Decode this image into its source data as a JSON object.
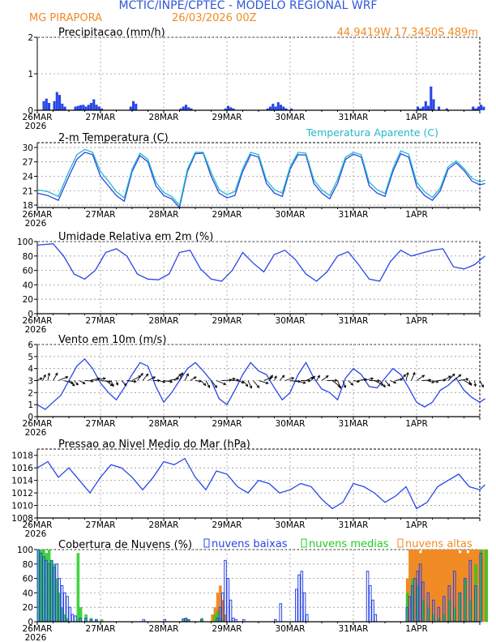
{
  "header": {
    "title": "MCTIC/INPE/CPTEC  -  MODELO REGIONAL WRF",
    "location": "MG PIRAPORA",
    "run": "26/03/2026 00Z",
    "coords": "44.9419W  17.3450S  489m"
  },
  "colors": {
    "title_blue": "#2f56d9",
    "orange": "#f08a24",
    "cyan": "#22b8c8",
    "series_blue": "#2846e8",
    "green": "#22cc22",
    "black": "#000000"
  },
  "x_axis": {
    "tick_labels": [
      "26MAR",
      "27MAR",
      "28MAR",
      "29MAR",
      "30MAR",
      "31MAR",
      "1APR"
    ],
    "year_label": "2026",
    "days": 7
  },
  "chart_data": [
    {
      "type": "bar",
      "title": "Precipitacao (mm/h)",
      "ylim": [
        0,
        2
      ],
      "yticks": [
        0,
        1,
        2
      ],
      "hours": [
        2,
        3,
        4,
        6,
        7,
        8,
        9,
        10,
        14,
        15,
        16,
        17,
        18,
        19,
        20,
        21,
        22,
        23,
        24,
        35,
        36,
        37,
        54,
        55,
        56,
        57,
        58,
        71,
        72,
        73,
        74,
        87,
        88,
        89,
        90,
        91,
        92,
        93,
        94,
        96,
        144,
        145,
        146,
        147,
        148,
        149,
        150,
        152,
        155,
        165,
        166,
        167,
        168,
        169
      ],
      "values": [
        0.25,
        0.32,
        0.2,
        0.25,
        0.5,
        0.42,
        0.18,
        0.1,
        0.1,
        0.12,
        0.14,
        0.15,
        0.1,
        0.15,
        0.2,
        0.3,
        0.15,
        0.1,
        0.05,
        0.1,
        0.25,
        0.18,
        0.05,
        0.1,
        0.15,
        0.08,
        0.05,
        0.05,
        0.12,
        0.08,
        0.05,
        0.05,
        0.1,
        0.18,
        0.1,
        0.22,
        0.15,
        0.1,
        0.05,
        0.05,
        0.1,
        0.05,
        0.1,
        0.25,
        0.12,
        0.65,
        0.3,
        0.1,
        0.05,
        0.1,
        0.05,
        0.1,
        0.15,
        0.1
      ]
    },
    {
      "type": "line",
      "title": "2-m Temperatura (C)",
      "legend": "Temperatura Aparente (C)",
      "ylim": [
        17.5,
        31
      ],
      "yticks": [
        18,
        21,
        24,
        27,
        30
      ],
      "series": [
        {
          "name": "Temperatura",
          "x": [
            0,
            4,
            8,
            12,
            15,
            18,
            21,
            24,
            27,
            30,
            33,
            36,
            39,
            42,
            45,
            48,
            51,
            54,
            57,
            60,
            63,
            66,
            69,
            72,
            75,
            78,
            81,
            84,
            87,
            90,
            93,
            96,
            99,
            102,
            105,
            108,
            111,
            114,
            117,
            120,
            123,
            126,
            129,
            132,
            135,
            138,
            141,
            144,
            147,
            150,
            153,
            156,
            159,
            162,
            165,
            168,
            170
          ],
          "values": [
            20.5,
            20,
            19,
            24,
            27.5,
            29,
            28.5,
            24,
            22,
            20,
            18.8,
            25,
            28.3,
            27,
            22,
            20,
            19.3,
            17.5,
            25,
            28.7,
            28.8,
            24,
            20.5,
            19.5,
            20,
            25,
            28.5,
            28,
            22.5,
            20.5,
            19.8,
            25.5,
            28.5,
            28.4,
            22.5,
            20.5,
            19.3,
            22.5,
            27.5,
            28.6,
            28,
            22,
            20.5,
            19.8,
            25,
            28.7,
            28,
            22,
            20,
            19,
            21,
            25.5,
            26.8,
            25.2,
            23,
            22.2,
            22.5
          ]
        },
        {
          "name": "Temperatura Aparente",
          "x": [
            0,
            4,
            8,
            12,
            15,
            18,
            21,
            24,
            27,
            30,
            33,
            36,
            39,
            42,
            45,
            48,
            51,
            54,
            57,
            60,
            63,
            66,
            69,
            72,
            75,
            78,
            81,
            84,
            87,
            90,
            93,
            96,
            99,
            102,
            105,
            108,
            111,
            114,
            117,
            120,
            123,
            126,
            129,
            132,
            135,
            138,
            141,
            144,
            147,
            150,
            153,
            156,
            159,
            162,
            165,
            168,
            170
          ],
          "values": [
            21.2,
            20.8,
            19.8,
            25,
            28.5,
            29.6,
            29,
            25,
            23,
            20.8,
            19.5,
            25.5,
            28.8,
            27.5,
            22.8,
            20.6,
            19.8,
            18,
            25.5,
            29,
            29,
            24.8,
            21.2,
            20.2,
            20.8,
            25.6,
            29,
            28.5,
            23.2,
            21.2,
            20.5,
            26,
            29,
            28.8,
            23.2,
            21.2,
            20,
            23.3,
            28,
            29,
            28.5,
            22.8,
            21.2,
            20.4,
            25.6,
            29.3,
            28.6,
            22.8,
            20.8,
            19.6,
            21.6,
            26,
            27.2,
            25.6,
            23.6,
            22.8,
            23.2
          ]
        }
      ]
    },
    {
      "type": "line",
      "title": "Umidade Relativa em 2m (%)",
      "ylim": [
        0,
        100
      ],
      "yticks": [
        0,
        20,
        40,
        60,
        80,
        100
      ],
      "x": [
        0,
        6,
        10,
        14,
        18,
        22,
        26,
        30,
        34,
        38,
        42,
        46,
        50,
        54,
        58,
        62,
        66,
        70,
        74,
        78,
        82,
        86,
        90,
        94,
        98,
        102,
        106,
        110,
        114,
        118,
        122,
        126,
        130,
        134,
        138,
        142,
        146,
        150,
        154,
        158,
        162,
        166,
        170
      ],
      "values": [
        95,
        97,
        80,
        55,
        48,
        60,
        85,
        90,
        80,
        55,
        48,
        47,
        55,
        85,
        88,
        62,
        48,
        45,
        60,
        85,
        70,
        58,
        82,
        88,
        75,
        55,
        45,
        58,
        80,
        86,
        68,
        48,
        45,
        72,
        88,
        80,
        84,
        88,
        90,
        65,
        62,
        68,
        80
      ]
    },
    {
      "type": "line",
      "title": "Vento em 10m (m/s)",
      "ylim": [
        0,
        6
      ],
      "yticks": [
        0,
        1,
        2,
        3,
        4,
        5,
        6
      ],
      "x": [
        0,
        3,
        6,
        9,
        12,
        15,
        18,
        21,
        24,
        27,
        30,
        33,
        36,
        39,
        42,
        45,
        48,
        51,
        54,
        57,
        60,
        63,
        66,
        69,
        72,
        75,
        78,
        81,
        84,
        87,
        90,
        93,
        96,
        99,
        102,
        105,
        108,
        111,
        114,
        117,
        120,
        123,
        126,
        129,
        132,
        135,
        138,
        141,
        144,
        147,
        150,
        153,
        156,
        159,
        162,
        165,
        168,
        170
      ],
      "values": [
        1,
        0.6,
        1.2,
        1.8,
        3,
        4.2,
        4.8,
        4,
        2.8,
        2,
        1.4,
        2.4,
        3.5,
        4.5,
        4.2,
        2.5,
        1.2,
        2,
        3,
        4,
        4.5,
        3.8,
        3,
        1.5,
        1,
        2.2,
        3.5,
        4.5,
        3.8,
        3.5,
        2.4,
        1.4,
        2,
        3.5,
        4.5,
        3.2,
        2.3,
        2,
        1.4,
        3.2,
        4,
        3.5,
        2.5,
        2.4,
        3.2,
        4,
        3.5,
        2.4,
        1.2,
        0.8,
        1.2,
        2.2,
        2.6,
        3.2,
        2.2,
        1.6,
        1.2,
        1.5
      ],
      "wind_arrows": "barb-like direction arrows near 3 m/s"
    },
    {
      "type": "line",
      "title": "Pressao ao Nivel Medio do Mar (hPa)",
      "ylim": [
        1008,
        1019
      ],
      "yticks": [
        1008,
        1010,
        1012,
        1014,
        1016,
        1018
      ],
      "x": [
        0,
        4,
        8,
        12,
        16,
        20,
        24,
        28,
        32,
        36,
        40,
        44,
        48,
        52,
        56,
        60,
        64,
        68,
        72,
        76,
        80,
        84,
        88,
        92,
        96,
        100,
        104,
        108,
        112,
        116,
        120,
        124,
        128,
        132,
        136,
        140,
        144,
        148,
        152,
        156,
        160,
        164,
        168,
        170
      ],
      "values": [
        1016,
        1017,
        1014.5,
        1016,
        1014,
        1012,
        1014.5,
        1016.5,
        1016,
        1014.5,
        1012.5,
        1014.5,
        1017,
        1016.5,
        1017.5,
        1014.5,
        1012.5,
        1015.5,
        1015,
        1013,
        1012,
        1014,
        1013.5,
        1012,
        1012.5,
        1013.5,
        1013,
        1011,
        1009.5,
        1010.5,
        1013.5,
        1013,
        1012,
        1010.5,
        1011.5,
        1013,
        1009.5,
        1010.5,
        1013,
        1014,
        1015,
        1013,
        1012.5,
        1013.3
      ]
    },
    {
      "type": "bar",
      "title": "Cobertura de Nuvens (%)",
      "ylim": [
        0,
        100
      ],
      "yticks": [
        0,
        20,
        40,
        60,
        80,
        100
      ],
      "series": [
        {
          "name": "nuvens baixas",
          "hours": [
            0,
            1,
            2,
            3,
            4,
            5,
            6,
            7,
            8,
            9,
            10,
            11,
            12,
            13,
            14,
            16,
            18,
            20,
            22,
            40,
            48,
            55,
            56,
            57,
            62,
            68,
            69,
            70,
            71,
            72,
            73,
            74,
            75,
            78,
            90,
            92,
            98,
            99,
            100,
            101,
            102,
            125,
            126,
            127,
            128,
            140,
            141,
            142,
            143,
            144,
            145,
            146,
            148,
            150,
            152,
            154,
            156,
            158,
            160,
            162,
            164,
            166,
            168
          ],
          "values": [
            100,
            95,
            90,
            85,
            80,
            85,
            75,
            80,
            60,
            50,
            40,
            35,
            20,
            10,
            8,
            5,
            5,
            3,
            3,
            3,
            3,
            4,
            5,
            3,
            3,
            5,
            20,
            40,
            85,
            60,
            30,
            5,
            3,
            3,
            3,
            25,
            45,
            65,
            70,
            40,
            10,
            70,
            50,
            30,
            10,
            20,
            35,
            50,
            60,
            70,
            80,
            55,
            40,
            30,
            20,
            35,
            50,
            70,
            40,
            60,
            85,
            50,
            95
          ]
        },
        {
          "name": "nuvens medias",
          "hours": [
            0,
            1,
            2,
            3,
            4,
            5,
            6,
            7,
            8,
            9,
            10,
            11,
            15,
            16,
            18,
            20,
            22,
            24,
            55,
            56,
            57,
            62,
            67,
            68,
            69,
            70,
            140,
            142,
            144,
            146,
            148,
            150,
            152,
            154,
            156,
            158,
            160,
            162,
            164,
            166,
            168,
            170
          ],
          "values": [
            100,
            100,
            100,
            95,
            100,
            85,
            80,
            60,
            40,
            20,
            10,
            5,
            95,
            20,
            10,
            5,
            3,
            3,
            3,
            5,
            3,
            5,
            10,
            15,
            5,
            3,
            40,
            60,
            50,
            30,
            20,
            10,
            5,
            10,
            30,
            20,
            40,
            60,
            30,
            80,
            100,
            100
          ]
        },
        {
          "name": "nuvens altas",
          "hours": [
            66,
            67,
            68,
            69,
            70,
            71,
            140,
            141,
            142,
            143,
            144,
            145,
            146,
            147,
            148,
            149,
            150,
            151,
            152,
            153,
            154,
            155,
            156,
            157,
            158,
            159,
            160,
            161,
            162,
            163,
            164,
            165,
            166,
            167,
            168,
            169,
            170
          ],
          "values": [
            10,
            20,
            40,
            50,
            30,
            10,
            60,
            100,
            100,
            100,
            100,
            95,
            100,
            100,
            100,
            100,
            100,
            100,
            100,
            100,
            100,
            100,
            100,
            100,
            100,
            100,
            95,
            100,
            100,
            95,
            100,
            100,
            100,
            100,
            100,
            100,
            100
          ]
        }
      ]
    }
  ]
}
